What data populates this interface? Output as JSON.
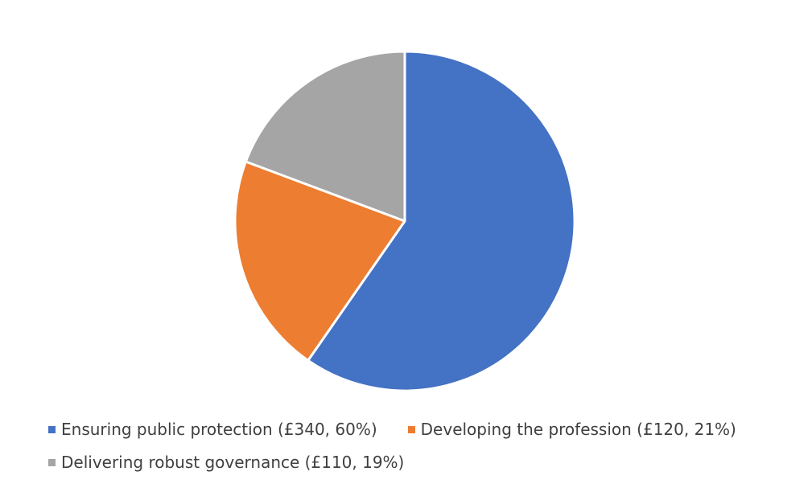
{
  "chart_data": {
    "type": "pie",
    "title": "",
    "slices": [
      {
        "label": "Ensuring public protection (£340, 60%)",
        "value": 340,
        "percent": 60,
        "color": "#4472C4"
      },
      {
        "label": "Developing the profession (£120, 21%)",
        "value": 120,
        "percent": 21,
        "color": "#ED7D31"
      },
      {
        "label": "Delivering robust governance (£110, 19%)",
        "value": 110,
        "percent": 19,
        "color": "#A5A5A5"
      }
    ],
    "start_angle": "12 o'clock",
    "direction": "clockwise",
    "legend": "bottom"
  }
}
